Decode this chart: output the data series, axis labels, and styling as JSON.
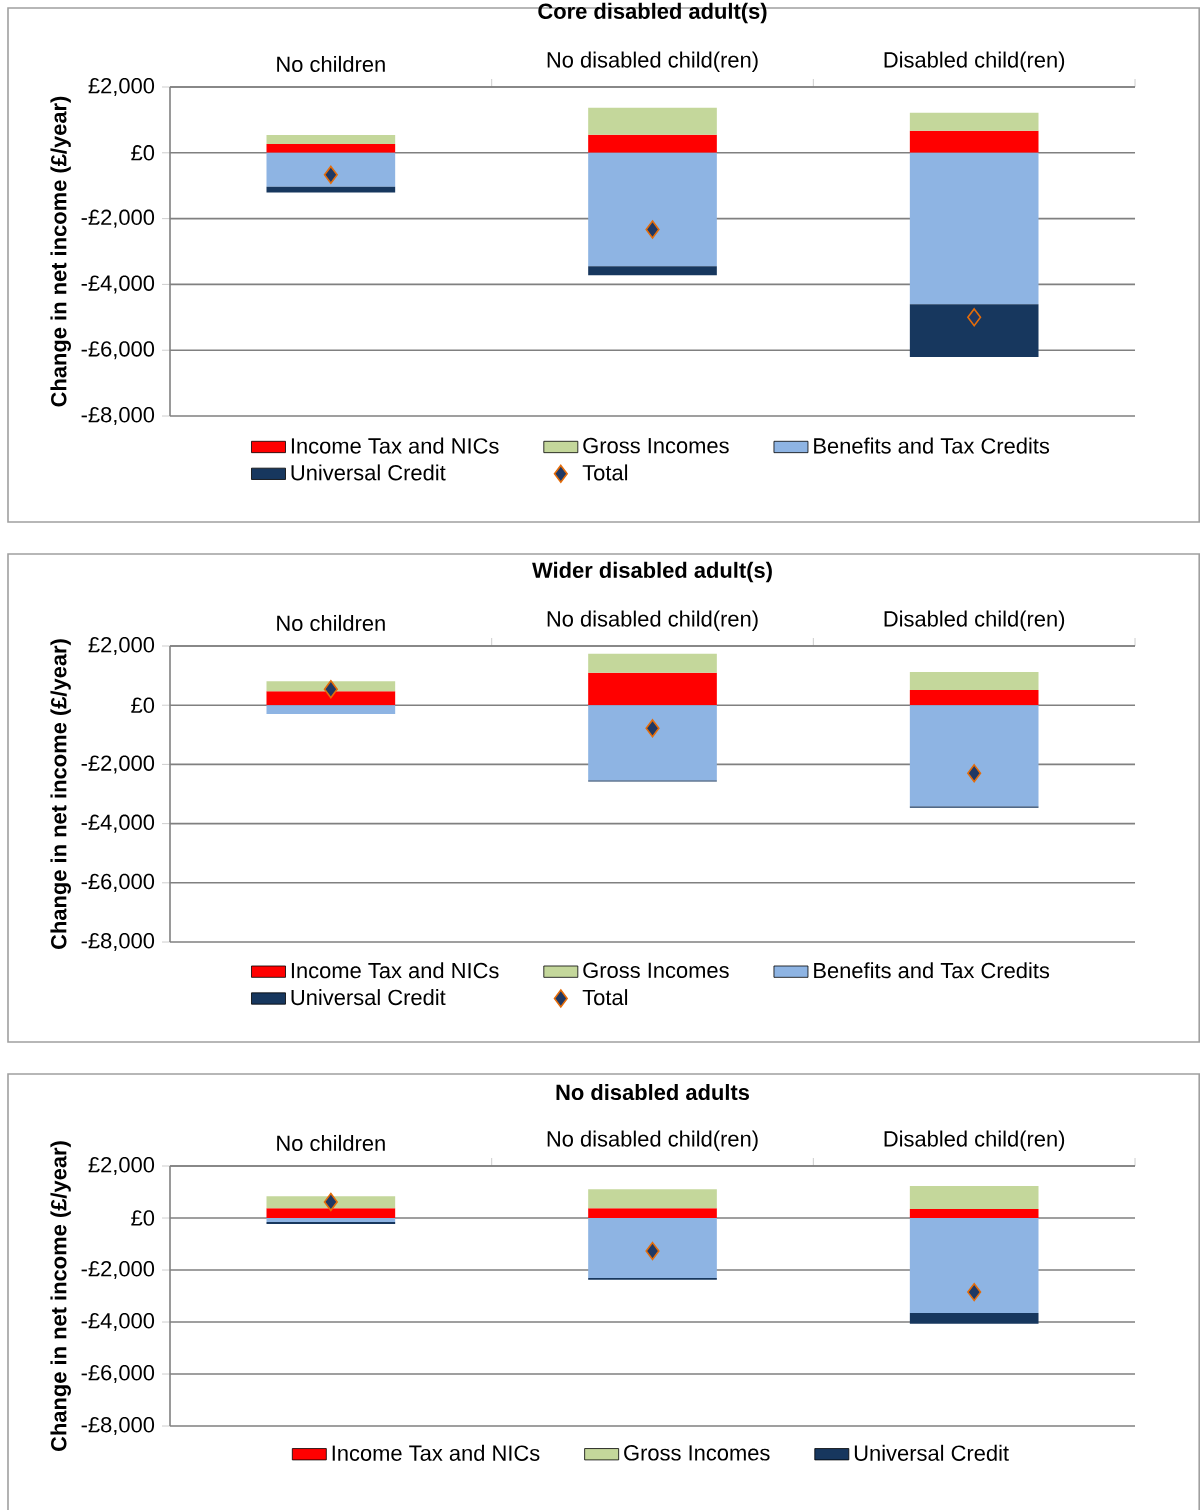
{
  "chart_data": [
    {
      "type": "bar",
      "stacked": true,
      "title": "Core disabled adult(s)",
      "ylabel": "Change in net income (£/year)",
      "categories": [
        "No children",
        "No disabled child(ren)",
        "Disabled child(ren)"
      ],
      "ylim": [
        -8000,
        2000
      ],
      "yticks": [
        {
          "value": -8000,
          "label": "-£8,000"
        },
        {
          "value": -6000,
          "label": "-£6,000"
        },
        {
          "value": -4000,
          "label": "-£4,000"
        },
        {
          "value": -2000,
          "label": "-£2,000"
        },
        {
          "value": 0,
          "label": "£0"
        },
        {
          "value": 2000,
          "label": "£2,000"
        }
      ],
      "grid": "y",
      "legend": "bottom",
      "series": [
        {
          "name": "Income Tax and NICs",
          "color": "#ff0000",
          "values": [
            270,
            550,
            670
          ]
        },
        {
          "name": "Gross Incomes",
          "color": "#c4d79b",
          "values": [
            270,
            820,
            550
          ]
        },
        {
          "name": "Benefits and Tax Credits",
          "color": "#8eb4e3",
          "values": [
            -1030,
            -3450,
            -4600
          ]
        },
        {
          "name": "Universal Credit",
          "color": "#17375e",
          "values": [
            -180,
            -270,
            -1610
          ]
        },
        {
          "name": "Total",
          "type": "scatter",
          "marker": "diamond",
          "color": "#1f3864",
          "values": [
            -670,
            -2330,
            -5000
          ]
        }
      ]
    },
    {
      "type": "bar",
      "stacked": true,
      "title": "Wider disabled adult(s)",
      "ylabel": "Change in net income (£/year)",
      "categories": [
        "No children",
        "No disabled child(ren)",
        "Disabled child(ren)"
      ],
      "ylim": [
        -8000,
        2000
      ],
      "yticks": [
        {
          "value": -8000,
          "label": "-£8,000"
        },
        {
          "value": -6000,
          "label": "-£6,000"
        },
        {
          "value": -4000,
          "label": "-£4,000"
        },
        {
          "value": -2000,
          "label": "-£2,000"
        },
        {
          "value": 0,
          "label": "£0"
        },
        {
          "value": 2000,
          "label": "£2,000"
        }
      ],
      "grid": "y",
      "legend": "bottom",
      "series": [
        {
          "name": "Income Tax and NICs",
          "color": "#ff0000",
          "values": [
            470,
            1100,
            510
          ]
        },
        {
          "name": "Gross Incomes",
          "color": "#c4d79b",
          "values": [
            340,
            640,
            610
          ]
        },
        {
          "name": "Benefits and Tax Credits",
          "color": "#8eb4e3",
          "values": [
            -300,
            -2540,
            -3420
          ]
        },
        {
          "name": "Universal Credit",
          "color": "#17375e",
          "values": [
            null,
            -40,
            -40
          ]
        },
        {
          "name": "Total",
          "type": "scatter",
          "marker": "diamond",
          "color": "#1f3864",
          "values": [
            540,
            -780,
            -2300
          ]
        }
      ]
    },
    {
      "type": "bar",
      "stacked": true,
      "title": "No disabled adults",
      "ylabel": "Change in net income (£/year)",
      "categories": [
        "No children",
        "No disabled child(ren)",
        "Disabled child(ren)"
      ],
      "ylim": [
        -8000,
        2000
      ],
      "yticks": [
        {
          "value": -8000,
          "label": "-£8,000"
        },
        {
          "value": -6000,
          "label": "-£6,000"
        },
        {
          "value": -4000,
          "label": "-£4,000"
        },
        {
          "value": -2000,
          "label": "-£2,000"
        },
        {
          "value": 0,
          "label": "£0"
        },
        {
          "value": 2000,
          "label": "£2,000"
        }
      ],
      "grid": "y",
      "legend": "bottom",
      "series": [
        {
          "name": "Income Tax and NICs",
          "color": "#ff0000",
          "values": [
            380,
            380,
            350
          ]
        },
        {
          "name": "Gross Incomes",
          "color": "#c4d79b",
          "values": [
            460,
            730,
            880
          ]
        },
        {
          "color": "#8eb4e3",
          "values": [
            -150,
            -2310,
            -3650
          ]
        },
        {
          "name": "Universal Credit",
          "color": "#17375e",
          "values": [
            -80,
            -60,
            -420
          ]
        },
        {
          "type": "scatter",
          "marker": "diamond",
          "color": "#1f3864",
          "values": [
            620,
            -1270,
            -2850
          ]
        }
      ]
    }
  ]
}
